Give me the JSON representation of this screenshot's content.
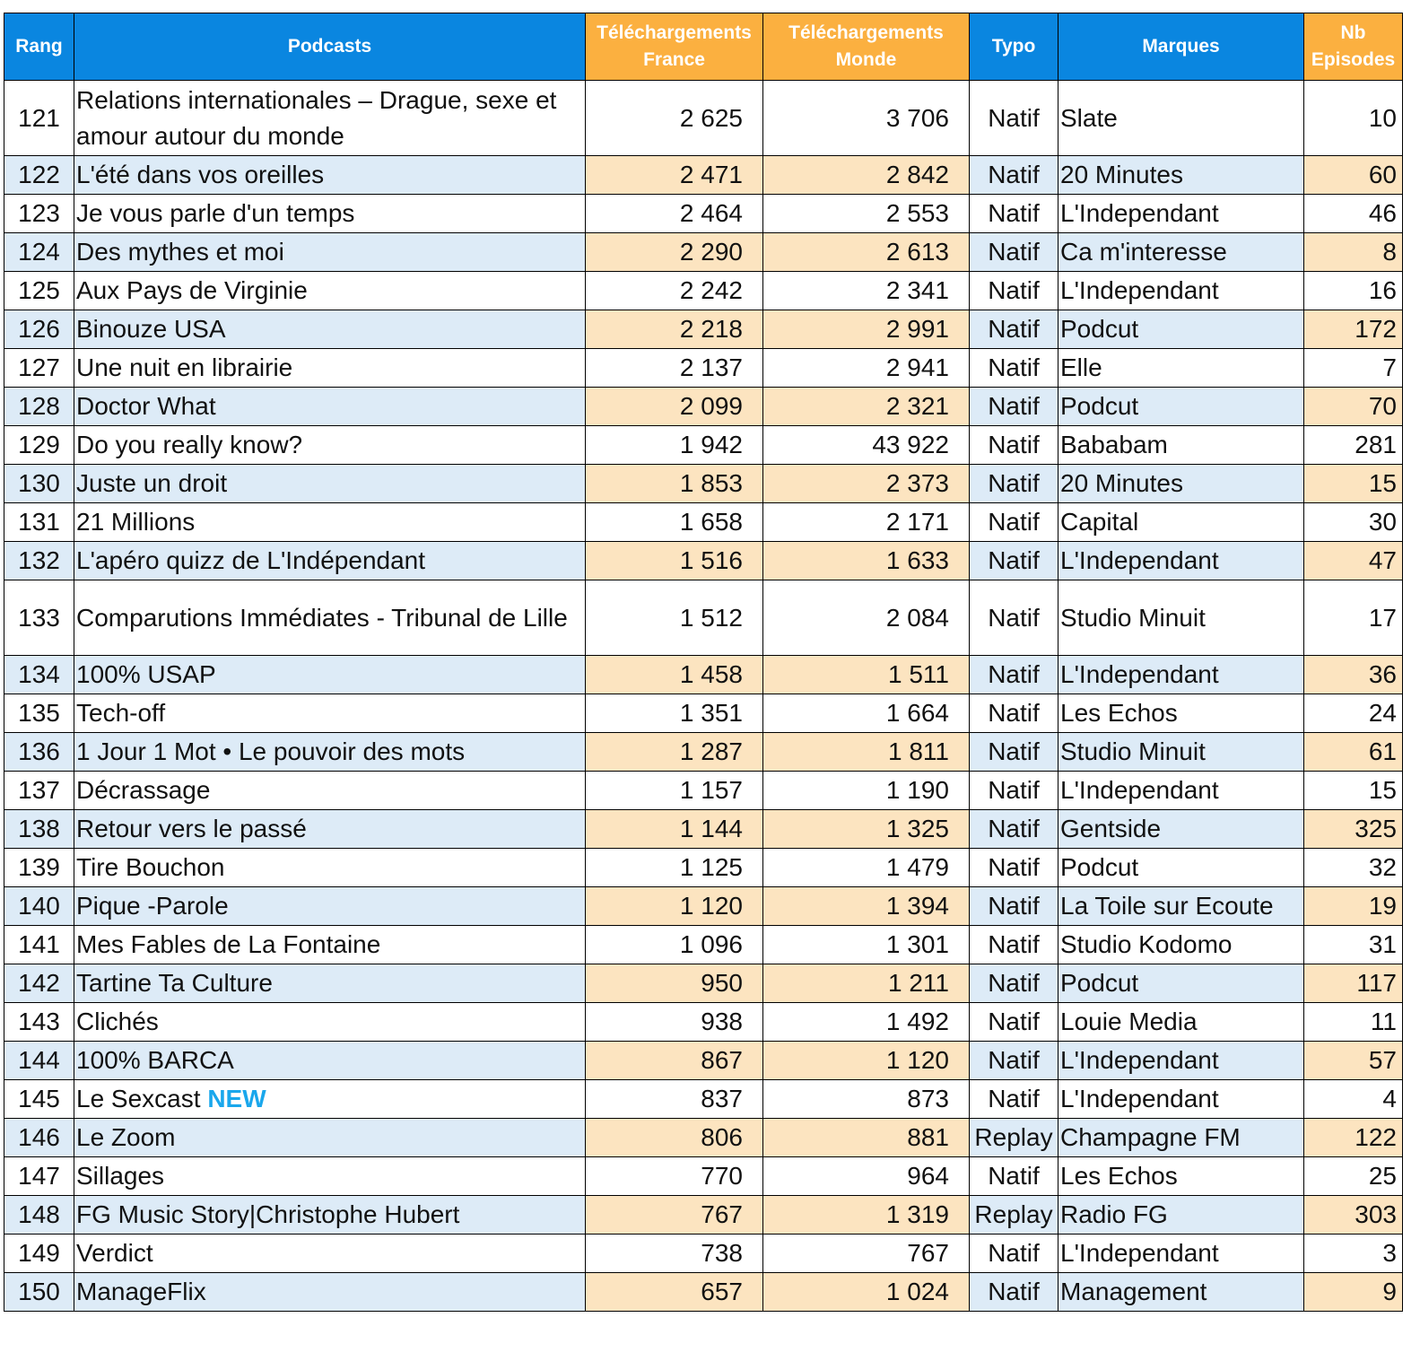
{
  "header": {
    "columns": [
      "Rang",
      "Podcasts",
      "Téléchargements France",
      "Téléchargements Monde",
      "Typo",
      "Marques",
      "Nb Episodes"
    ]
  },
  "table": {
    "rows": [
      {
        "rang": "121",
        "podcast": "Relations internationales – Drague, sexe et amour autour du monde",
        "france": "2 625",
        "monde": "3 706",
        "typo": "Natif",
        "marque": "Slate",
        "episodes": "10"
      },
      {
        "rang": "122",
        "podcast": "L'été dans vos oreilles",
        "france": "2 471",
        "monde": "2 842",
        "typo": "Natif",
        "marque": "20 Minutes",
        "episodes": "60"
      },
      {
        "rang": "123",
        "podcast": "Je vous parle d'un temps",
        "france": "2 464",
        "monde": "2 553",
        "typo": "Natif",
        "marque": "L'Independant",
        "episodes": "46"
      },
      {
        "rang": "124",
        "podcast": "Des mythes et moi",
        "france": "2 290",
        "monde": "2 613",
        "typo": "Natif",
        "marque": "Ca m'interesse",
        "episodes": "8"
      },
      {
        "rang": "125",
        "podcast": "Aux Pays de Virginie",
        "france": "2 242",
        "monde": "2 341",
        "typo": "Natif",
        "marque": "L'Independant",
        "episodes": "16"
      },
      {
        "rang": "126",
        "podcast": "Binouze USA",
        "france": "2 218",
        "monde": "2 991",
        "typo": "Natif",
        "marque": "Podcut",
        "episodes": "172"
      },
      {
        "rang": "127",
        "podcast": "Une nuit en librairie",
        "france": "2 137",
        "monde": "2 941",
        "typo": "Natif",
        "marque": "Elle",
        "episodes": "7"
      },
      {
        "rang": "128",
        "podcast": "Doctor What",
        "france": "2 099",
        "monde": "2 321",
        "typo": "Natif",
        "marque": "Podcut",
        "episodes": "70"
      },
      {
        "rang": "129",
        "podcast": "Do you really know?",
        "france": "1 942",
        "monde": "43 922",
        "typo": "Natif",
        "marque": "Bababam",
        "episodes": "281"
      },
      {
        "rang": "130",
        "podcast": "Juste un droit",
        "france": "1 853",
        "monde": "2 373",
        "typo": "Natif",
        "marque": "20 Minutes",
        "episodes": "15"
      },
      {
        "rang": "131",
        "podcast": "21 Millions",
        "france": "1 658",
        "monde": "2 171",
        "typo": "Natif",
        "marque": "Capital",
        "episodes": "30"
      },
      {
        "rang": "132",
        "podcast": "L'apéro quizz de L'Indépendant",
        "france": "1 516",
        "monde": "1 633",
        "typo": "Natif",
        "marque": "L'Independant",
        "episodes": "47"
      },
      {
        "rang": "133",
        "podcast": "Comparutions Immédiates - Tribunal de Lille",
        "france": "1 512",
        "monde": "2 084",
        "typo": "Natif",
        "marque": "Studio Minuit",
        "episodes": "17"
      },
      {
        "rang": "134",
        "podcast": "100% USAP",
        "france": "1 458",
        "monde": "1 511",
        "typo": "Natif",
        "marque": "L'Independant",
        "episodes": "36"
      },
      {
        "rang": "135",
        "podcast": "Tech-off",
        "france": "1 351",
        "monde": "1 664",
        "typo": "Natif",
        "marque": "Les Echos",
        "episodes": "24"
      },
      {
        "rang": "136",
        "podcast": "1 Jour 1 Mot • Le pouvoir des mots",
        "france": "1 287",
        "monde": "1 811",
        "typo": "Natif",
        "marque": "Studio Minuit",
        "episodes": "61"
      },
      {
        "rang": "137",
        "podcast": "Décrassage",
        "france": "1 157",
        "monde": "1 190",
        "typo": "Natif",
        "marque": "L'Independant",
        "episodes": "15"
      },
      {
        "rang": "138",
        "podcast": "Retour vers le passé",
        "france": "1 144",
        "monde": "1 325",
        "typo": "Natif",
        "marque": "Gentside",
        "episodes": "325"
      },
      {
        "rang": "139",
        "podcast": "Tire Bouchon",
        "france": "1 125",
        "monde": "1 479",
        "typo": "Natif",
        "marque": "Podcut",
        "episodes": "32"
      },
      {
        "rang": "140",
        "podcast": "Pique -Parole",
        "france": "1 120",
        "monde": "1 394",
        "typo": "Natif",
        "marque": "La Toile sur Ecoute",
        "episodes": "19"
      },
      {
        "rang": "141",
        "podcast": "Mes Fables de La Fontaine",
        "france": "1 096",
        "monde": "1 301",
        "typo": "Natif",
        "marque": "Studio Kodomo",
        "episodes": "31"
      },
      {
        "rang": "142",
        "podcast": "Tartine Ta Culture",
        "france": "950",
        "monde": "1 211",
        "typo": "Natif",
        "marque": "Podcut",
        "episodes": "117"
      },
      {
        "rang": "143",
        "podcast": "Clichés",
        "france": "938",
        "monde": "1 492",
        "typo": "Natif",
        "marque": "Louie Media",
        "episodes": "11"
      },
      {
        "rang": "144",
        "podcast": "100% BARCA",
        "france": "867",
        "monde": "1 120",
        "typo": "Natif",
        "marque": "L'Independant",
        "episodes": "57"
      },
      {
        "rang": "145",
        "podcast": "Le Sexcast",
        "badge": "NEW",
        "france": "837",
        "monde": "873",
        "typo": "Natif",
        "marque": "L'Independant",
        "episodes": "4"
      },
      {
        "rang": "146",
        "podcast": "Le Zoom",
        "france": "806",
        "monde": "881",
        "typo": "Replay",
        "marque": "Champagne FM",
        "episodes": "122"
      },
      {
        "rang": "147",
        "podcast": "Sillages",
        "france": "770",
        "monde": "964",
        "typo": "Natif",
        "marque": "Les Echos",
        "episodes": "25"
      },
      {
        "rang": "148",
        "podcast": "FG Music Story|Christophe Hubert",
        "france": "767",
        "monde": "1 319",
        "typo": "Replay",
        "marque": "Radio FG",
        "episodes": "303"
      },
      {
        "rang": "149",
        "podcast": "Verdict",
        "france": "738",
        "monde": "767",
        "typo": "Natif",
        "marque": "L'Independant",
        "episodes": "3"
      },
      {
        "rang": "150",
        "podcast": "ManageFlix",
        "france": "657",
        "monde": "1 024",
        "typo": "Natif",
        "marque": "Management",
        "episodes": "9"
      }
    ]
  }
}
